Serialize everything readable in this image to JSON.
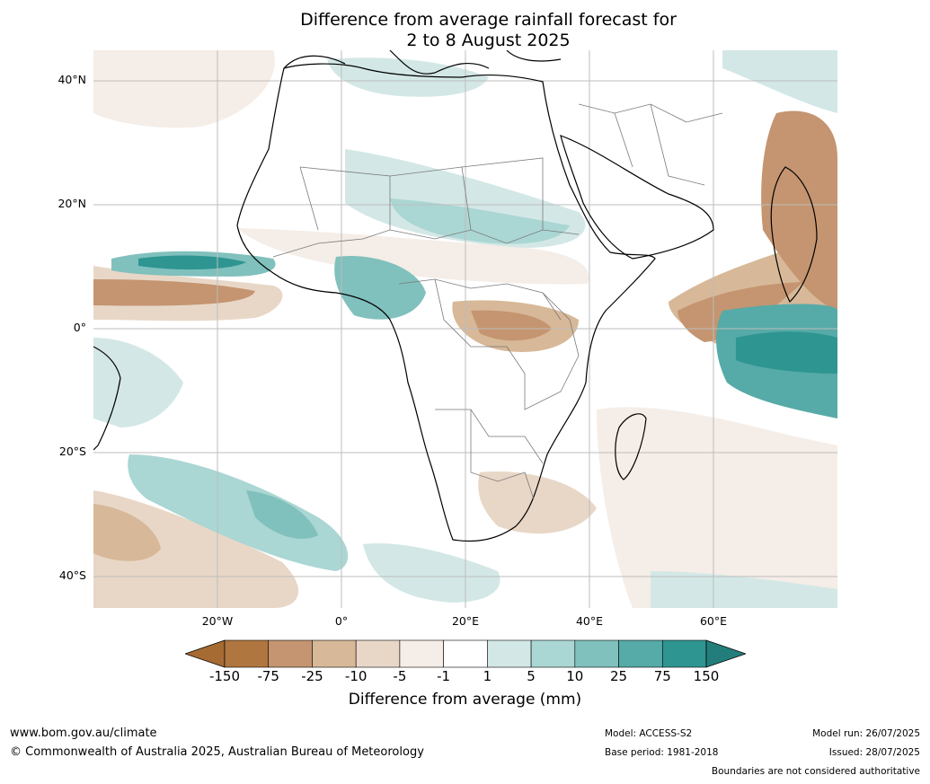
{
  "title": {
    "line1": "Difference from average rainfall forecast for",
    "line2": "2 to 8 August 2025"
  },
  "map": {
    "region": "Africa",
    "lat_labels": [
      "40°N",
      "20°N",
      "0°",
      "20°S",
      "40°S"
    ],
    "lon_labels": [
      "20°W",
      "0°",
      "20°E",
      "40°E",
      "60°E"
    ],
    "colors": {
      "land_outline": "#000000",
      "borders": "#7a7a7a",
      "grid": "#bdbdbd"
    }
  },
  "colorbar": {
    "title": "Difference from average (mm)",
    "ticks": [
      "-150",
      "-75",
      "-25",
      "-10",
      "-5",
      "-1",
      "1",
      "5",
      "10",
      "25",
      "75",
      "150"
    ],
    "colors": [
      "#a66b33",
      "#b07640",
      "#c49570",
      "#d7b898",
      "#e8d7c7",
      "#f5ede7",
      "#ffffff",
      "#d3e8e6",
      "#aad6d3",
      "#80c0bd",
      "#56aaa7",
      "#2e9591",
      "#237e7b"
    ]
  },
  "footer": {
    "url": "www.bom.gov.au/climate",
    "copyright": "© Commonwealth of Australia 2025, Australian Bureau of Meteorology",
    "model": "Model: ACCESS-S2",
    "base_period": "Base period: 1981-2018",
    "model_run": "Model run: 26/07/2025",
    "issued": "Issued: 28/07/2025",
    "boundaries_note": "Boundaries are not considered authoritative"
  }
}
